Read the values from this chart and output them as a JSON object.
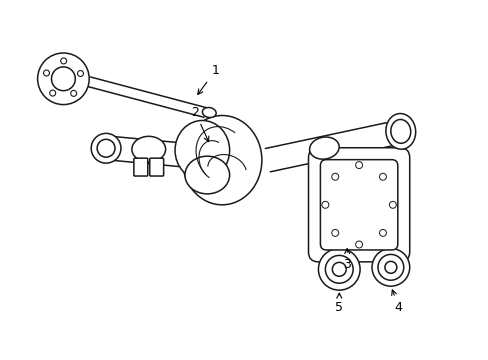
{
  "background_color": "#ffffff",
  "line_color": "#1a1a1a",
  "lw": 1.1,
  "fig_w": 4.89,
  "fig_h": 3.6,
  "dpi": 100
}
